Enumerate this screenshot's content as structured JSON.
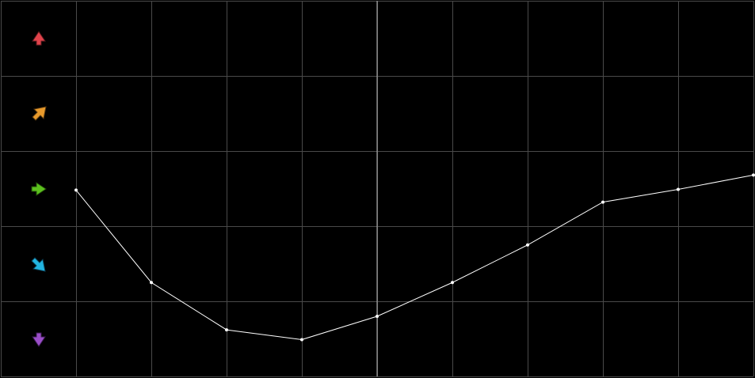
{
  "chart_data": {
    "type": "line",
    "x": [
      1,
      2,
      3,
      4,
      5,
      6,
      7,
      8,
      9,
      10
    ],
    "series": [
      {
        "color": "#ffffff",
        "values": [
          2.48,
          1.25,
          0.62,
          0.49,
          0.8,
          1.25,
          1.75,
          2.32,
          2.49,
          2.68
        ]
      }
    ],
    "xlim": [
      0,
      10
    ],
    "ylim": [
      0,
      5
    ],
    "xticks": [
      0,
      1,
      2,
      3,
      4,
      5,
      6,
      7,
      8,
      9,
      10
    ],
    "yticks": [
      0,
      1,
      2,
      3,
      4,
      5
    ],
    "grid": true
  }
}
